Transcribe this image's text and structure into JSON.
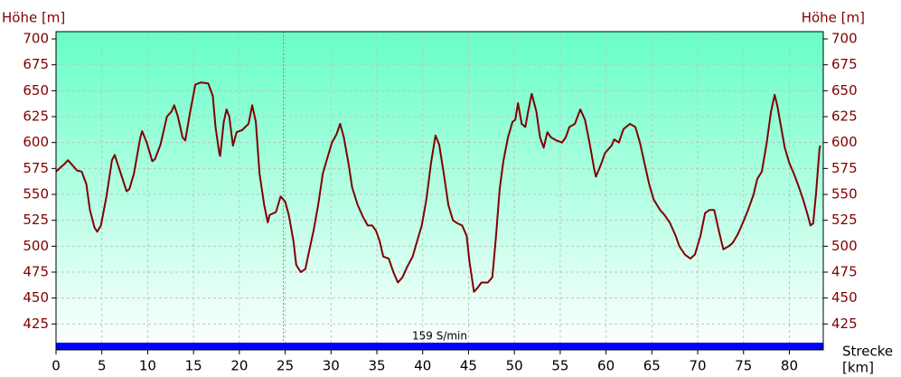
{
  "chart_data": {
    "type": "line",
    "y_label_left": "Höhe [m]",
    "y_label_right": "Höhe [m]",
    "x_label_lines": [
      "Strecke",
      "[km]"
    ],
    "annotation": "159 S/min",
    "marker_x": 24.8,
    "xlim": [
      0,
      83.7
    ],
    "ylim": [
      400,
      707
    ],
    "xticks": [
      0,
      5,
      10,
      15,
      20,
      25,
      30,
      35,
      40,
      45,
      50,
      55,
      60,
      65,
      70,
      75,
      80
    ],
    "yticks": [
      425,
      450,
      475,
      500,
      525,
      550,
      575,
      600,
      625,
      650,
      675,
      700
    ],
    "grid": true,
    "series": [
      {
        "name": "Höhe",
        "color": "#800000",
        "x": [
          0,
          1.0,
          1.3,
          1.8,
          2.3,
          2.8,
          3.3,
          3.7,
          4.2,
          4.5,
          4.9,
          5.5,
          6.1,
          6.4,
          7.0,
          7.7,
          8.0,
          8.5,
          9.2,
          9.4,
          9.9,
          10.5,
          10.8,
          11.4,
          12.1,
          12.6,
          12.9,
          13.3,
          13.8,
          14.1,
          14.6,
          15.2,
          15.8,
          16.6,
          17.1,
          17.4,
          17.8,
          17.9,
          18.3,
          18.6,
          18.9,
          19.3,
          19.7,
          20.3,
          21.0,
          21.4,
          21.8,
          22.2,
          22.7,
          23.1,
          23.3,
          24.0,
          24.5,
          25.0,
          25.4,
          25.9,
          26.2,
          26.7,
          27.2,
          27.6,
          28.1,
          28.6,
          29.1,
          29.6,
          30.1,
          30.6,
          31.0,
          31.4,
          31.9,
          32.3,
          32.9,
          33.5,
          34.0,
          34.5,
          34.9,
          35.3,
          35.7,
          36.3,
          36.8,
          37.3,
          37.8,
          38.3,
          38.9,
          39.4,
          39.9,
          40.4,
          40.9,
          41.4,
          41.8,
          42.3,
          42.8,
          43.3,
          43.8,
          44.3,
          44.8,
          45.1,
          45.6,
          46.0,
          46.4,
          47.1,
          47.6,
          48.0,
          48.4,
          48.8,
          49.3,
          49.8,
          50.1,
          50.4,
          50.8,
          51.2,
          51.5,
          51.9,
          52.4,
          52.8,
          53.2,
          53.6,
          54.0,
          54.6,
          55.2,
          55.6,
          56.0,
          56.6,
          57.2,
          57.7,
          58.2,
          58.7,
          58.9,
          59.5,
          59.9,
          60.6,
          60.9,
          61.4,
          61.9,
          62.6,
          63.2,
          63.7,
          64.2,
          64.7,
          65.2,
          65.9,
          66.4,
          67.0,
          67.6,
          68.0,
          68.6,
          69.2,
          69.7,
          70.3,
          70.8,
          71.3,
          71.8,
          72.3,
          72.8,
          73.4,
          73.8,
          74.4,
          74.9,
          75.5,
          76.1,
          76.5,
          77.0,
          77.5,
          78.0,
          78.4,
          78.7,
          79.1,
          79.5,
          80.0,
          80.5,
          81.0,
          81.5,
          82.0,
          82.3,
          82.6,
          82.9,
          83.3,
          83.4
        ],
        "values": [
          572,
          580,
          583,
          578,
          573,
          572,
          560,
          535,
          518,
          514,
          520,
          548,
          583,
          588,
          572,
          553,
          555,
          570,
          605,
          611,
          600,
          582,
          584,
          598,
          625,
          630,
          636,
          625,
          605,
          602,
          628,
          656,
          658,
          657,
          645,
          615,
          590,
          587,
          620,
          632,
          625,
          597,
          610,
          612,
          618,
          636,
          620,
          570,
          540,
          523,
          530,
          533,
          548,
          543,
          530,
          505,
          482,
          475,
          478,
          495,
          515,
          540,
          570,
          585,
          600,
          608,
          618,
          605,
          580,
          557,
          540,
          528,
          520,
          520,
          515,
          505,
          490,
          488,
          475,
          465,
          470,
          480,
          490,
          505,
          520,
          545,
          580,
          607,
          598,
          570,
          540,
          525,
          522,
          520,
          510,
          485,
          456,
          460,
          465,
          465,
          470,
          510,
          555,
          582,
          605,
          620,
          622,
          638,
          618,
          615,
          630,
          647,
          630,
          605,
          595,
          610,
          605,
          602,
          600,
          605,
          615,
          618,
          632,
          622,
          600,
          575,
          567,
          580,
          590,
          597,
          603,
          600,
          613,
          618,
          615,
          600,
          580,
          560,
          545,
          535,
          530,
          522,
          510,
          500,
          492,
          488,
          492,
          510,
          532,
          535,
          535,
          515,
          497,
          500,
          503,
          512,
          522,
          535,
          550,
          565,
          572,
          598,
          630,
          646,
          635,
          615,
          595,
          580,
          570,
          558,
          545,
          530,
          520,
          522,
          550,
          595,
          597
        ]
      }
    ]
  }
}
